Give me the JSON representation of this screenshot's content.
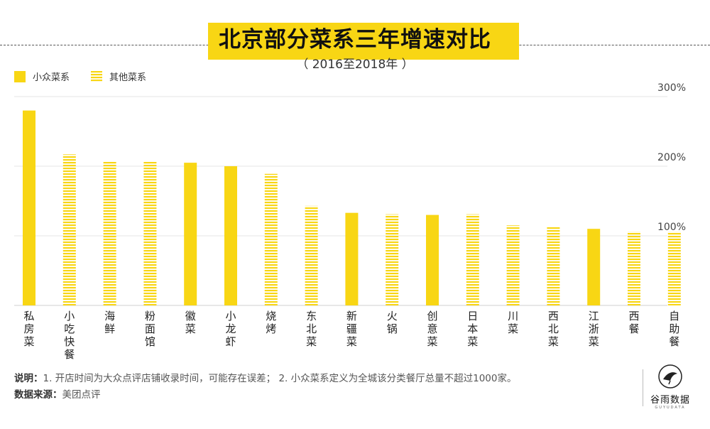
{
  "header": {
    "title": "北京部分菜系三年增速对比",
    "subtitle": "（ 2016至2018年 ）"
  },
  "legend": {
    "items": [
      {
        "label": "小众菜系",
        "style": "solid"
      },
      {
        "label": "其他菜系",
        "style": "striped"
      }
    ]
  },
  "colors": {
    "accent": "#f8d614",
    "gridline": "#e6e6e6",
    "text": "#333333"
  },
  "chart_data": {
    "type": "bar",
    "title": "北京部分菜系三年增速对比",
    "subtitle": "（ 2016至2018年 ）",
    "y_tick_labels": [
      "100%",
      "200%",
      "300%"
    ],
    "y_ticks": [
      100,
      200,
      300
    ],
    "ylim": [
      0,
      310
    ],
    "grid": true,
    "legend_position": "top-left",
    "categories": [
      "私房菜",
      "小吃快餐",
      "海鲜",
      "粉面馆",
      "徽菜",
      "小龙虾",
      "烧烤",
      "东北菜",
      "新疆菜",
      "火锅",
      "创意菜",
      "日本菜",
      "川菜",
      "西北菜",
      "江浙菜",
      "西餐",
      "自助餐"
    ],
    "series": [
      {
        "name": "小众菜系",
        "style": "solid",
        "values": [
          280,
          null,
          null,
          null,
          205,
          200,
          null,
          null,
          133,
          null,
          130,
          null,
          null,
          null,
          110,
          null,
          null
        ]
      },
      {
        "name": "其他菜系",
        "style": "striped",
        "values": [
          null,
          217,
          207,
          207,
          null,
          null,
          189,
          143,
          null,
          131,
          null,
          131,
          115,
          113,
          null,
          106,
          106
        ]
      }
    ]
  },
  "notes": {
    "note_label": "说明：",
    "note_text": "1. 开店时间为大众点评店铺收录时间，可能存在误差；  2. 小众菜系定义为全城该分类餐厅总量不超过1000家。",
    "source_label": "数据来源：",
    "source_text": "美团点评"
  },
  "logo": {
    "text": "谷雨数据",
    "sub": "GUYUDATA"
  }
}
